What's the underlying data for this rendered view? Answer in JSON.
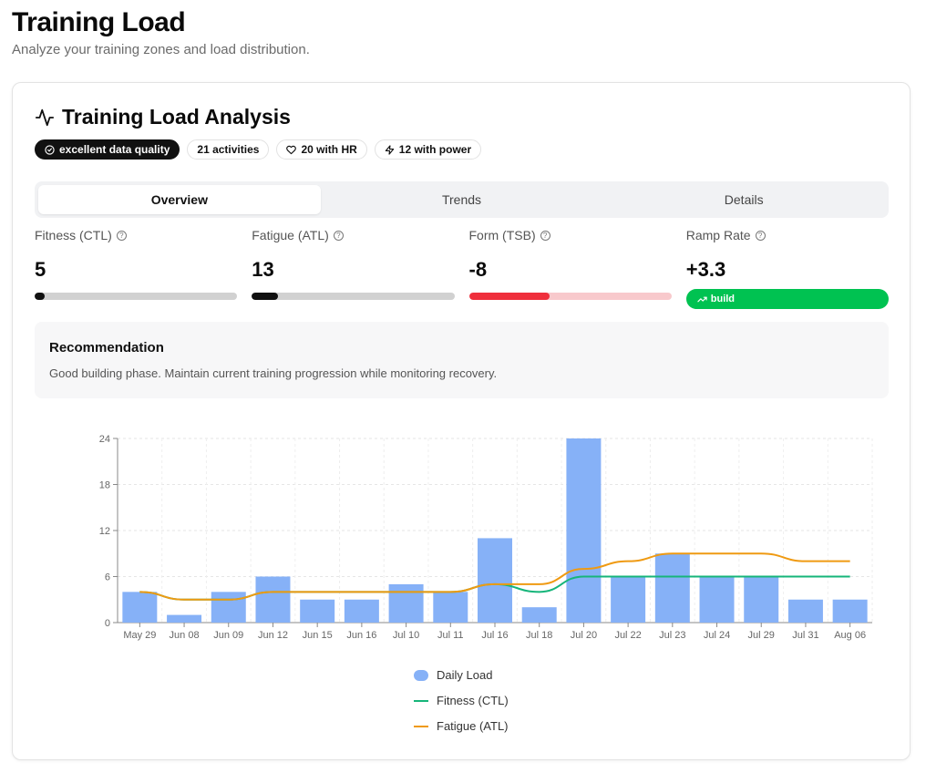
{
  "page": {
    "title": "Training Load",
    "subtitle": "Analyze your training zones and load distribution."
  },
  "card": {
    "title": "Training Load Analysis",
    "icon": "activity-icon",
    "badges": [
      {
        "label": "excellent data quality",
        "icon": "check-circle-icon"
      },
      {
        "label": "21 activities"
      },
      {
        "label": "20 with HR",
        "icon": "heart-icon"
      },
      {
        "label": "12 with power",
        "icon": "lightning-icon"
      }
    ]
  },
  "tabs": [
    {
      "label": "Overview",
      "active": true
    },
    {
      "label": "Trends",
      "active": false
    },
    {
      "label": "Details",
      "active": false
    }
  ],
  "metrics": {
    "ctl": {
      "label": "Fitness (CTL)",
      "value": "5",
      "progress": 0.05,
      "color": "#111111",
      "track": "#d1d1d1"
    },
    "atl": {
      "label": "Fatigue (ATL)",
      "value": "13",
      "progress": 0.13,
      "color": "#111111",
      "track": "#d1d1d1"
    },
    "tsb": {
      "label": "Form (TSB)",
      "value": "-8",
      "progress": 0.4,
      "color": "#ef2f3c",
      "track": "#f8c9cc"
    },
    "ramp": {
      "label": "Ramp Rate",
      "value": "+3.3",
      "status": "build",
      "color": "#00c251"
    }
  },
  "recommendation": {
    "title": "Recommendation",
    "text": "Good building phase. Maintain current training progression while monitoring recovery."
  },
  "chart_data": {
    "type": "bar",
    "categories": [
      "May 29",
      "Jun 08",
      "Jun 09",
      "Jun 12",
      "Jun 15",
      "Jun 16",
      "Jul 10",
      "Jul 11",
      "Jul 16",
      "Jul 18",
      "Jul 20",
      "Jul 22",
      "Jul 23",
      "Jul 24",
      "Jul 29",
      "Jul 31",
      "Aug 06"
    ],
    "series": [
      {
        "name": "Daily Load",
        "kind": "bar",
        "color": "#86b1f7",
        "values": [
          4,
          1,
          4,
          6,
          3,
          3,
          5,
          4,
          11,
          2,
          24,
          6,
          9,
          6,
          6,
          3,
          3
        ]
      },
      {
        "name": "Fitness (CTL)",
        "kind": "line",
        "color": "#16b57a",
        "values": [
          4,
          3,
          3,
          4,
          4,
          4,
          4,
          4,
          5,
          4,
          6,
          6,
          6,
          6,
          6,
          6,
          6
        ]
      },
      {
        "name": "Fatigue (ATL)",
        "kind": "line",
        "color": "#ef9a12",
        "values": [
          4,
          3,
          3,
          4,
          4,
          4,
          4,
          4,
          5,
          5,
          7,
          8,
          9,
          9,
          9,
          8,
          8
        ]
      }
    ],
    "yticks": [
      0,
      6,
      12,
      18,
      24
    ],
    "ylim": [
      0,
      24
    ],
    "grid": true,
    "legend": "bottom-center"
  }
}
